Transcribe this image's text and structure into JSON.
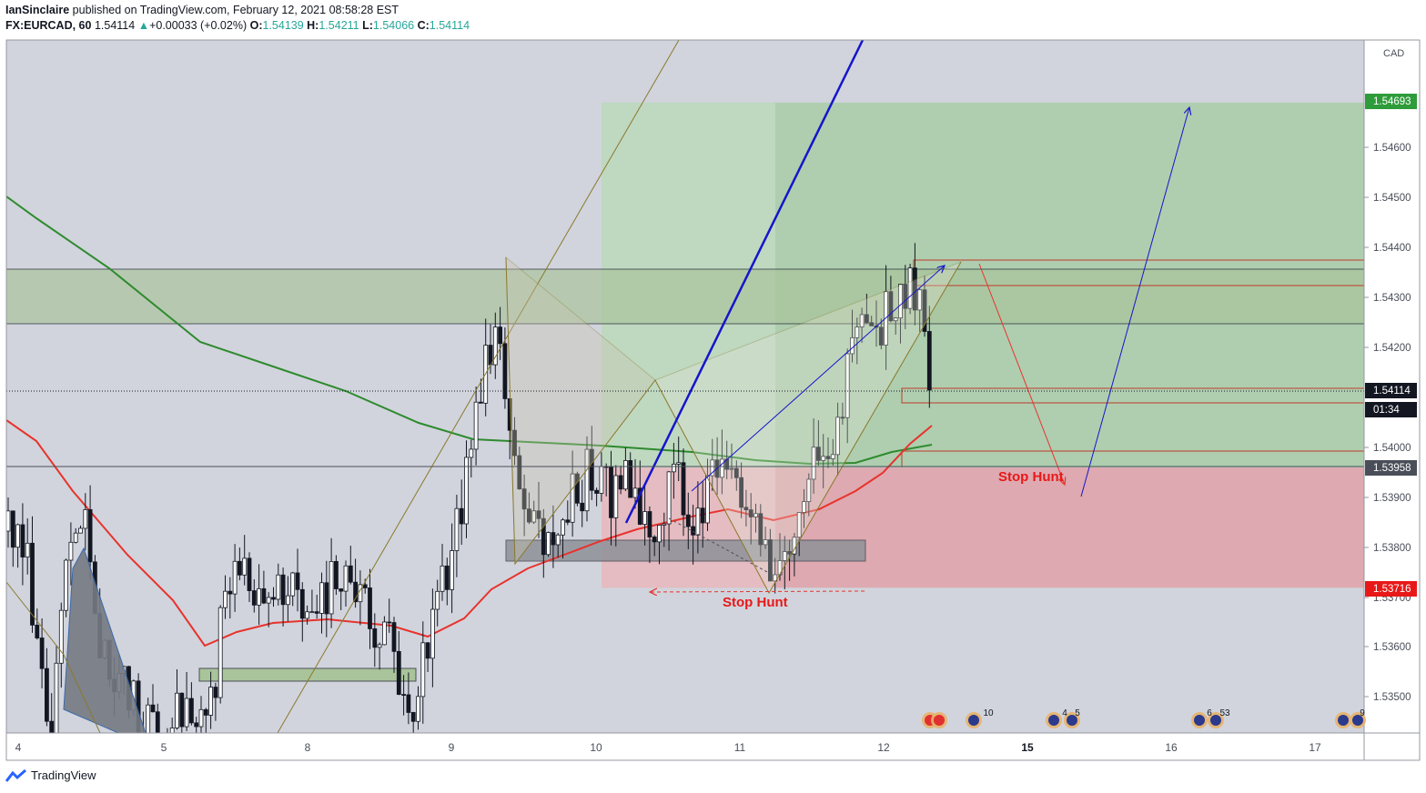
{
  "header": {
    "author": "IanSinclaire",
    "published_text": "published on TradingView.com, February 12, 2021 08:58:28 EST",
    "symbol_interval": "FX:EURCAD, 60",
    "last": "1.54114",
    "change": "+0.00033 (+0.02%)",
    "o_label": "O:",
    "o": "1.54139",
    "h_label": "H:",
    "h": "1.54211",
    "l_label": "L:",
    "l": "1.54066",
    "c_label": "C:",
    "c": "1.54114"
  },
  "footer": {
    "brand": "TradingView"
  },
  "colors": {
    "bg": "#d1d4dc",
    "up": "#ffffff",
    "down": "#131722",
    "target": "#a5cca4",
    "stop": "#e0a1a8",
    "ema_green": "#2e8b2e",
    "ema_red": "#e8332d",
    "blue": "#1515cc",
    "pattern": "#8a7a2e"
  },
  "chart_data": {
    "type": "candlestick",
    "symbol": "FX:EURCAD",
    "interval": "60",
    "currency": "CAD",
    "x_ticks": [
      "4",
      "5",
      "8",
      "9",
      "10",
      "11",
      "12",
      "15",
      "16",
      "17"
    ],
    "y_ticks": [
      "1.53500",
      "1.53600",
      "1.53700",
      "1.53800",
      "1.53900",
      "1.54000",
      "1.54200",
      "1.54300",
      "1.54400",
      "1.54500",
      "1.54600"
    ],
    "ylim": [
      1.5344,
      1.5488
    ],
    "price_labels": [
      {
        "value": "1.54693",
        "color": "#2e9c3a"
      },
      {
        "value": "1.54114",
        "color": "#131722"
      },
      {
        "value": "01:34",
        "color": "#131722"
      },
      {
        "value": "1.53958",
        "color": "#4a4e58"
      },
      {
        "value": "1.53716",
        "color": "#e81818"
      }
    ],
    "long_position": {
      "entry": 1.53958,
      "target": 1.54693,
      "stop": 1.53716
    },
    "annotations": [
      "Stop Hunt",
      "Stop Hunt"
    ],
    "event_markers": [
      "10",
      "4",
      "5",
      "6",
      "53",
      "9"
    ]
  }
}
